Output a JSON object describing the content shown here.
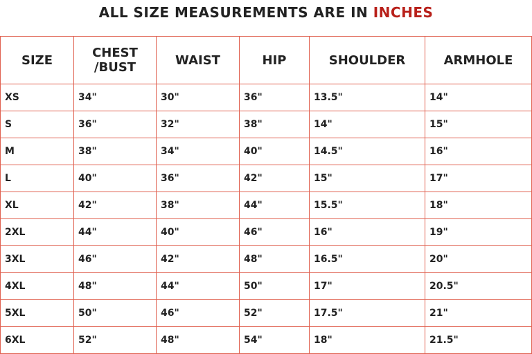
{
  "title": {
    "prefix": "ALL SIZE MEASUREMENTS ARE IN ",
    "accent": "INCHES",
    "accent_color": "#b8201a"
  },
  "border_color": "#e0604f",
  "headers": [
    "SIZE",
    "CHEST\n/BUST",
    "WAIST",
    "HIP",
    "SHOULDER",
    "ARMHOLE"
  ],
  "rows": [
    [
      "XS",
      "34\"",
      "30\"",
      "36\"",
      "13.5\"",
      "14\""
    ],
    [
      "S",
      "36\"",
      "32\"",
      "38\"",
      "14\"",
      "15\""
    ],
    [
      "M",
      "38\"",
      "34\"",
      "40\"",
      "14.5\"",
      "16\""
    ],
    [
      "L",
      "40\"",
      "36\"",
      "42\"",
      "15\"",
      "17\""
    ],
    [
      "XL",
      "42\"",
      "38\"",
      "44\"",
      "15.5\"",
      "18\""
    ],
    [
      "2XL",
      "44\"",
      "40\"",
      "46\"",
      "16\"",
      "19\""
    ],
    [
      "3XL",
      "46\"",
      "42\"",
      "48\"",
      "16.5\"",
      "20\""
    ],
    [
      "4XL",
      "48\"",
      "44\"",
      "50\"",
      "17\"",
      "20.5\""
    ],
    [
      "5XL",
      "50\"",
      "46\"",
      "52\"",
      "17.5\"",
      "21\""
    ],
    [
      "6XL",
      "52\"",
      "48\"",
      "54\"",
      "18\"",
      "21.5\""
    ]
  ]
}
